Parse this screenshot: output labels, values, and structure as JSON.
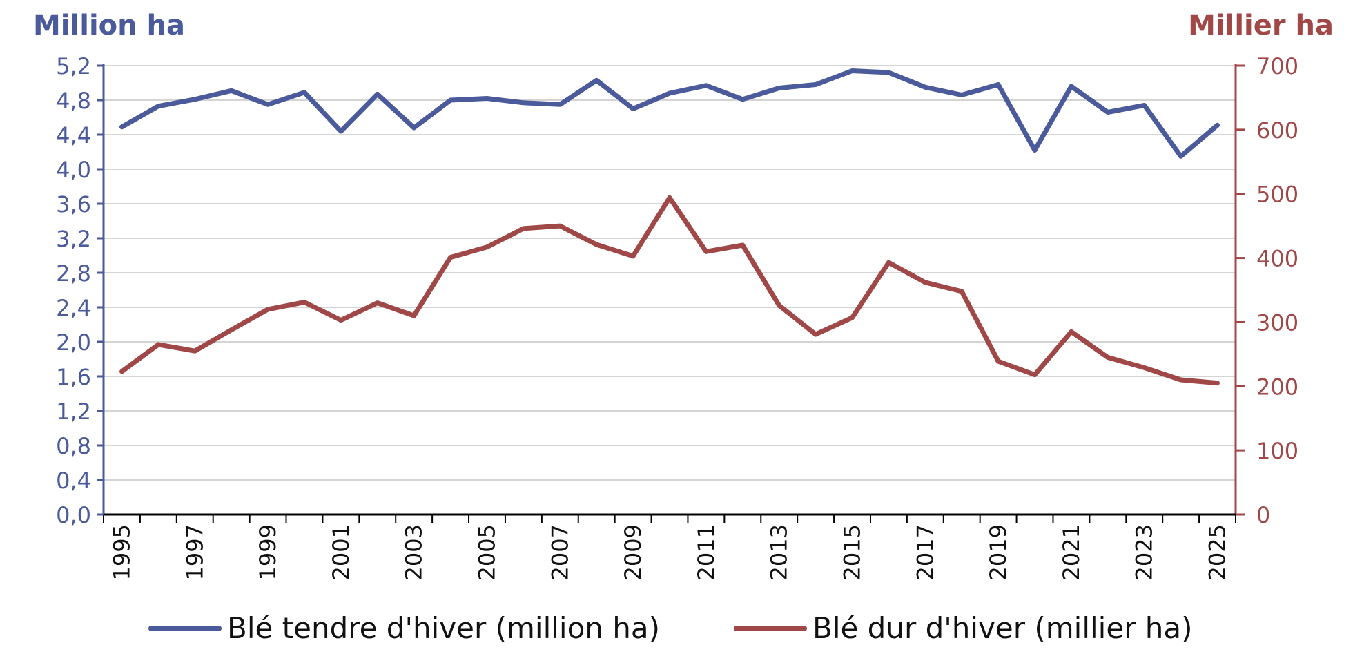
{
  "chart_data": {
    "type": "line",
    "left_axis_unit": "Million ha",
    "right_axis_unit": "Millier ha",
    "x": [
      1995,
      1996,
      1997,
      1998,
      1999,
      2000,
      2001,
      2002,
      2003,
      2004,
      2005,
      2006,
      2007,
      2008,
      2009,
      2010,
      2011,
      2012,
      2013,
      2014,
      2015,
      2016,
      2017,
      2018,
      2019,
      2020,
      2021,
      2022,
      2023,
      2024,
      2025
    ],
    "x_tick_labels": [
      "1995",
      "1997",
      "1999",
      "2001",
      "2003",
      "2005",
      "2007",
      "2009",
      "2011",
      "2013",
      "2015",
      "2017",
      "2019",
      "2021",
      "2023",
      "2025"
    ],
    "left_axis": {
      "ylim": [
        0,
        5.2
      ],
      "ticks": [
        "0,0",
        "0,4",
        "0,8",
        "1,2",
        "1,6",
        "2,0",
        "2,4",
        "2,8",
        "3,2",
        "3,6",
        "4,0",
        "4,4",
        "4,8",
        "5,2"
      ]
    },
    "right_axis": {
      "ylim": [
        0,
        700
      ],
      "ticks": [
        "0",
        "100",
        "200",
        "300",
        "400",
        "500",
        "600",
        "700"
      ]
    },
    "grid": true,
    "legend_position": "bottom",
    "series": [
      {
        "name": "Blé tendre d'hiver (million ha)",
        "axis": "left",
        "color": "#4a5a9a",
        "values": [
          4.49,
          4.73,
          4.81,
          4.91,
          4.75,
          4.89,
          4.44,
          4.87,
          4.48,
          4.8,
          4.82,
          4.77,
          4.75,
          5.03,
          4.7,
          4.88,
          4.97,
          4.81,
          4.94,
          4.98,
          5.14,
          5.12,
          4.95,
          4.86,
          4.98,
          4.22,
          4.96,
          4.66,
          4.74,
          4.15,
          4.51
        ]
      },
      {
        "name": "Blé dur d'hiver (millier ha)",
        "axis": "right",
        "color": "#a04848",
        "values": [
          223,
          265,
          255,
          288,
          320,
          331,
          303,
          330,
          310,
          401,
          417,
          446,
          450,
          421,
          403,
          494,
          410,
          420,
          326,
          281,
          307,
          393,
          362,
          348,
          239,
          218,
          285,
          245,
          229,
          210,
          205
        ]
      }
    ]
  }
}
